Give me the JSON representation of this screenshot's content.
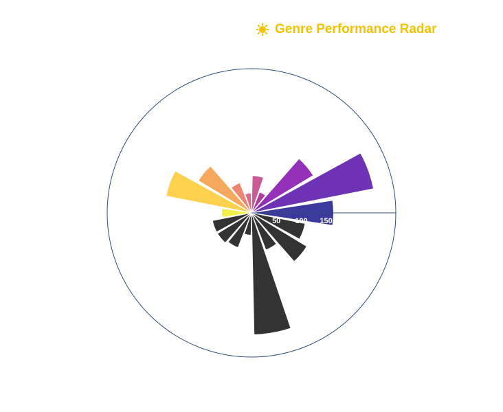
{
  "title": "Genre Performance Radar",
  "icon": "sun-icon",
  "colors": {
    "title": "#f2c200",
    "axis": "#2f4b7c",
    "tick_label": "#ffffff",
    "other_bars": "#333333"
  },
  "chart_data": {
    "type": "bar",
    "subtype": "polar-bar",
    "title": "Genre Performance Radar",
    "radial_axis": {
      "range": [
        0,
        290
      ],
      "ticks": [
        50,
        100,
        150
      ],
      "tick_labels": [
        "50",
        "100",
        "150"
      ]
    },
    "angular_axis": {
      "visible": false
    },
    "grid": false,
    "legend": "none",
    "bars": [
      {
        "value": 165,
        "color": "#3b3a9c"
      },
      {
        "value": 250,
        "color": "#6e33b4"
      },
      {
        "value": 145,
        "color": "#9530b8"
      },
      {
        "value": 45,
        "color": "#b13ca2"
      },
      {
        "value": 75,
        "color": "#c95a98"
      },
      {
        "value": 40,
        "color": "#de6a82"
      },
      {
        "value": 65,
        "color": "#ef8570"
      },
      {
        "value": 125,
        "color": "#f6a85d"
      },
      {
        "value": 175,
        "color": "#fdd04e"
      },
      {
        "value": 60,
        "color": "#f0f048"
      },
      {
        "value": 80,
        "color": "#333333"
      },
      {
        "value": 80,
        "color": "#333333"
      },
      {
        "value": 75,
        "color": "#333333"
      },
      {
        "value": 45,
        "color": "#333333"
      },
      {
        "value": 245,
        "color": "#333333"
      },
      {
        "value": 80,
        "color": "#333333"
      },
      {
        "value": 130,
        "color": "#333333"
      },
      {
        "value": 110,
        "color": "#333333"
      }
    ]
  }
}
